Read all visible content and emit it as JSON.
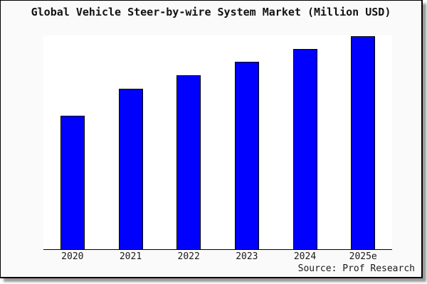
{
  "chart_data": {
    "type": "bar",
    "title": "Global Vehicle Steer-by-wire System Market (Million USD)",
    "categories": [
      "2020",
      "2021",
      "2022",
      "2023",
      "2024",
      "2025e"
    ],
    "values": [
      62.5,
      75.3,
      81.6,
      88.0,
      94.0,
      100.0
    ],
    "values_note": "No y-axis ticks, labels or gridlines are shown; values are estimated relative bar heights as percent of the tallest bar (2025e = 100).",
    "xlabel": "",
    "ylabel": "",
    "ylim": [
      0,
      100
    ],
    "grid": false,
    "legend": false,
    "bar_color": "#0000ff",
    "bar_border_color": "#000000",
    "plot_background": "#ffffff",
    "figure_background": "#fafafa",
    "source": "Source: Prof Research"
  }
}
